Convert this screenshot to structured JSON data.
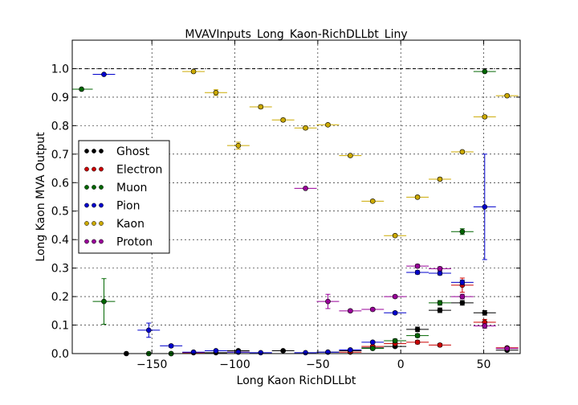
{
  "chart_data": {
    "type": "scatter",
    "title": "MVAVInputs_Long_Kaon-RichDLLbt_Liny",
    "xlabel": "Long Kaon RichDLLbt",
    "ylabel": "Long Kaon MVA Output",
    "xlim": [
      -198,
      72
    ],
    "ylim": [
      0.0,
      1.1
    ],
    "x_ticks": [
      -150,
      -100,
      -50,
      0,
      50
    ],
    "x_tick_labels": [
      "−150",
      "−100",
      "−50",
      "0",
      "50"
    ],
    "y_ticks": [
      0.0,
      0.1,
      0.2,
      0.3,
      0.4,
      0.5,
      0.6,
      0.7,
      0.8,
      0.9,
      1.0
    ],
    "y_tick_labels": [
      "0.0",
      "0.1",
      "0.2",
      "0.3",
      "0.4",
      "0.5",
      "0.6",
      "0.7",
      "0.8",
      "0.9",
      "1.0"
    ],
    "reference_line": 1.0,
    "grid": true,
    "legend_position": "center-left",
    "bin_half_width": 6.75,
    "series": [
      {
        "name": "Ghost",
        "color": "#000000",
        "points": [
          {
            "x": -165.4,
            "y": 0.0,
            "err": 0.0
          },
          {
            "x": -138.4,
            "y": 0.0,
            "err": 0.0
          },
          {
            "x": -111.4,
            "y": 0.003,
            "err": 0.002
          },
          {
            "x": -97.9,
            "y": 0.01,
            "err": 0.003
          },
          {
            "x": -70.9,
            "y": 0.01,
            "err": 0.003
          },
          {
            "x": -43.9,
            "y": 0.005,
            "err": 0.002
          },
          {
            "x": -30.4,
            "y": 0.01,
            "err": 0.003
          },
          {
            "x": -16.9,
            "y": 0.02,
            "err": 0.004
          },
          {
            "x": -3.4,
            "y": 0.025,
            "err": 0.004
          },
          {
            "x": 10.1,
            "y": 0.085,
            "err": 0.008
          },
          {
            "x": 23.6,
            "y": 0.152,
            "err": 0.008
          },
          {
            "x": 37.1,
            "y": 0.178,
            "err": 0.008
          },
          {
            "x": 50.6,
            "y": 0.143,
            "err": 0.008
          },
          {
            "x": 64.1,
            "y": 0.012,
            "err": 0.004
          }
        ]
      },
      {
        "name": "Electron",
        "color": "#cc0000",
        "points": [
          {
            "x": -124.9,
            "y": 0.003,
            "err": 0.002
          },
          {
            "x": -97.9,
            "y": 0.005,
            "err": 0.002
          },
          {
            "x": -30.4,
            "y": 0.005,
            "err": 0.002
          },
          {
            "x": -16.9,
            "y": 0.025,
            "err": 0.004
          },
          {
            "x": -3.4,
            "y": 0.035,
            "err": 0.005
          },
          {
            "x": 10.1,
            "y": 0.04,
            "err": 0.006
          },
          {
            "x": 23.6,
            "y": 0.03,
            "err": 0.005
          },
          {
            "x": 37.1,
            "y": 0.24,
            "err": 0.025
          },
          {
            "x": 50.6,
            "y": 0.11,
            "err": 0.01
          },
          {
            "x": 64.1,
            "y": 0.02,
            "err": 0.005
          }
        ]
      },
      {
        "name": "Muon",
        "color": "#006600",
        "points": [
          {
            "x": -192.4,
            "y": 0.928,
            "err": 0.0
          },
          {
            "x": -178.9,
            "y": 0.183,
            "err": 0.08
          },
          {
            "x": -151.9,
            "y": 0.0,
            "err": 0.0
          },
          {
            "x": -138.4,
            "y": 0.0,
            "err": 0.0
          },
          {
            "x": -16.9,
            "y": 0.018,
            "err": 0.004
          },
          {
            "x": -3.4,
            "y": 0.045,
            "err": 0.006
          },
          {
            "x": 10.1,
            "y": 0.063,
            "err": 0.006
          },
          {
            "x": 23.6,
            "y": 0.178,
            "err": 0.008
          },
          {
            "x": 37.1,
            "y": 0.428,
            "err": 0.01
          },
          {
            "x": 50.6,
            "y": 0.99,
            "err": 0.0
          }
        ]
      },
      {
        "name": "Pion",
        "color": "#0000cc",
        "points": [
          {
            "x": -178.9,
            "y": 0.98,
            "err": 0.0
          },
          {
            "x": -151.9,
            "y": 0.082,
            "err": 0.025
          },
          {
            "x": -138.4,
            "y": 0.027,
            "err": 0.005
          },
          {
            "x": -124.9,
            "y": 0.005,
            "err": 0.002
          },
          {
            "x": -111.4,
            "y": 0.01,
            "err": 0.002
          },
          {
            "x": -97.9,
            "y": 0.005,
            "err": 0.002
          },
          {
            "x": -84.4,
            "y": 0.003,
            "err": 0.002
          },
          {
            "x": -57.4,
            "y": 0.003,
            "err": 0.002
          },
          {
            "x": -43.9,
            "y": 0.005,
            "err": 0.002
          },
          {
            "x": -30.4,
            "y": 0.013,
            "err": 0.003
          },
          {
            "x": -16.9,
            "y": 0.04,
            "err": 0.004
          },
          {
            "x": -3.4,
            "y": 0.143,
            "err": 0.005
          },
          {
            "x": 10.1,
            "y": 0.285,
            "err": 0.006
          },
          {
            "x": 23.6,
            "y": 0.282,
            "err": 0.006
          },
          {
            "x": 37.1,
            "y": 0.25,
            "err": 0.008
          },
          {
            "x": 50.6,
            "y": 0.515,
            "err": 0.185
          }
        ]
      },
      {
        "name": "Kaon",
        "color": "#ccaa00",
        "points": [
          {
            "x": -124.9,
            "y": 0.99,
            "err": 0.0
          },
          {
            "x": -111.4,
            "y": 0.916,
            "err": 0.01
          },
          {
            "x": -97.9,
            "y": 0.73,
            "err": 0.012
          },
          {
            "x": -84.4,
            "y": 0.866,
            "err": 0.006
          },
          {
            "x": -70.9,
            "y": 0.82,
            "err": 0.006
          },
          {
            "x": -57.4,
            "y": 0.792,
            "err": 0.006
          },
          {
            "x": -43.9,
            "y": 0.803,
            "err": 0.005
          },
          {
            "x": -30.4,
            "y": 0.695,
            "err": 0.005
          },
          {
            "x": -16.9,
            "y": 0.535,
            "err": 0.005
          },
          {
            "x": -3.4,
            "y": 0.414,
            "err": 0.005
          },
          {
            "x": 10.1,
            "y": 0.549,
            "err": 0.005
          },
          {
            "x": 23.6,
            "y": 0.612,
            "err": 0.005
          },
          {
            "x": 37.1,
            "y": 0.708,
            "err": 0.005
          },
          {
            "x": 50.6,
            "y": 0.831,
            "err": 0.005
          },
          {
            "x": 64.1,
            "y": 0.905,
            "err": 0.004
          }
        ]
      },
      {
        "name": "Proton",
        "color": "#990099",
        "points": [
          {
            "x": -57.4,
            "y": 0.58,
            "err": 0.0
          },
          {
            "x": -43.9,
            "y": 0.183,
            "err": 0.025
          },
          {
            "x": -30.4,
            "y": 0.15,
            "err": 0.005
          },
          {
            "x": -16.9,
            "y": 0.155,
            "err": 0.005
          },
          {
            "x": -3.4,
            "y": 0.2,
            "err": 0.005
          },
          {
            "x": 10.1,
            "y": 0.307,
            "err": 0.006
          },
          {
            "x": 23.6,
            "y": 0.298,
            "err": 0.006
          },
          {
            "x": 37.1,
            "y": 0.2,
            "err": 0.008
          },
          {
            "x": 50.6,
            "y": 0.097,
            "err": 0.008
          },
          {
            "x": 64.1,
            "y": 0.018,
            "err": 0.004
          }
        ]
      }
    ]
  }
}
